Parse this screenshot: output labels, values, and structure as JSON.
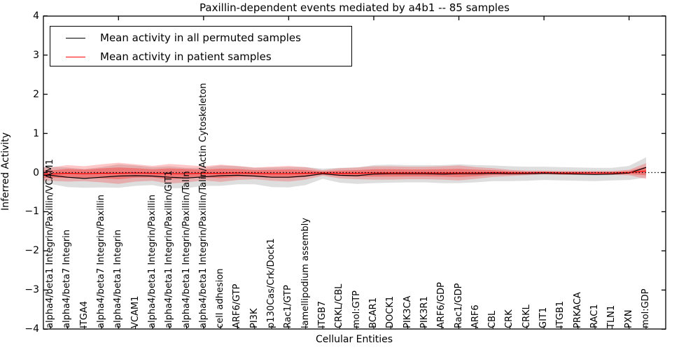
{
  "title": "Paxillin-dependent events mediated by a4b1 -- 85 samples",
  "colors": {
    "permuted_line": "#000000",
    "patient_line": "#ff0000",
    "permuted_band": "rgba(0,0,0,0.13)",
    "patient_band": "rgba(255,0,0,0.22)",
    "patient_band_inner": "rgba(255,0,0,0.30)",
    "axis": "#000000"
  },
  "chart_data": {
    "type": "line",
    "title": "Paxillin-dependent events mediated by a4b1 -- 85 samples",
    "xlabel": "Cellular Entities",
    "ylabel": "Inferred Activity",
    "ylim": [
      -4,
      4
    ],
    "yticks": [
      "4",
      "3",
      "2",
      "1",
      "0",
      "−1",
      "−2",
      "−3",
      "−4"
    ],
    "ytick_values": [
      4,
      3,
      2,
      1,
      0,
      -1,
      -2,
      -3,
      -4
    ],
    "grid": false,
    "legend_position": "upper left",
    "zero_reference_line": 0,
    "legend": [
      {
        "label": "Mean activity in all permuted samples",
        "color": "#000000"
      },
      {
        "label": "Mean activity in patient samples",
        "color": "#ff0000"
      }
    ],
    "categories": [
      "alpha4/beta1 Integrin/Paxillin/VCAM1",
      "alpha4/beta7 Integrin",
      "ITGA4",
      "alpha4/beta7 Integrin/Paxillin",
      "alpha4/beta1 Integrin",
      "VCAM1",
      "alpha4/beta1 Integrin/Paxillin",
      "alpha4/beta1 Integrin/Paxillin/GIT1",
      "alpha4/beta1 Integrin/Paxillin/Talin",
      "alpha4/beta1 Integrin/Paxillin/Talin/Actin Cytoskeleton",
      "cell adhesion",
      "ARF6/GTP",
      "PI3K",
      "p130Cas/Crk/Dock1",
      "Rac1/GTP",
      "lamellipodium assembly",
      "ITGB7",
      "CRKL/CBL",
      "mol:GTP",
      "BCAR1",
      "DOCK1",
      "PIK3CA",
      "PIK3R1",
      "ARF6/GDP",
      "Rac1/GDP",
      "ARF6",
      "CBL",
      "CRK",
      "CRKL",
      "GIT1",
      "ITGB1",
      "PRKACA",
      "RAC1",
      "TLN1",
      "PXN",
      "mol:GDP"
    ],
    "series": [
      {
        "name": "Mean activity in all permuted samples",
        "color": "#000000",
        "values": [
          -0.07,
          -0.12,
          -0.15,
          -0.12,
          -0.09,
          -0.08,
          -0.09,
          -0.12,
          -0.14,
          -0.11,
          -0.08,
          -0.07,
          -0.09,
          -0.12,
          -0.12,
          -0.09,
          -0.03,
          -0.07,
          -0.08,
          -0.04,
          -0.03,
          -0.03,
          -0.03,
          -0.04,
          -0.03,
          -0.03,
          -0.02,
          -0.03,
          -0.03,
          -0.02,
          -0.03,
          -0.04,
          -0.05,
          -0.04,
          -0.01,
          0.13
        ]
      },
      {
        "name": "Mean activity in patient samples",
        "color": "#ff0000",
        "values": [
          -0.04,
          -0.02,
          -0.03,
          -0.02,
          -0.02,
          -0.01,
          -0.02,
          -0.03,
          -0.03,
          -0.02,
          -0.02,
          -0.01,
          -0.02,
          -0.03,
          -0.03,
          -0.02,
          -0.01,
          -0.02,
          -0.02,
          -0.01,
          -0.01,
          -0.01,
          -0.01,
          -0.01,
          -0.01,
          -0.01,
          0.0,
          -0.01,
          -0.01,
          0.0,
          -0.01,
          -0.01,
          -0.01,
          -0.01,
          0.0,
          0.04
        ]
      }
    ],
    "bands": [
      {
        "name": "permuted-samples-std-band",
        "series": 0,
        "color": "rgba(0,0,0,0.13)",
        "halfwidths": [
          0.22,
          0.25,
          0.24,
          0.26,
          0.3,
          0.26,
          0.23,
          0.28,
          0.26,
          0.23,
          0.26,
          0.23,
          0.21,
          0.25,
          0.26,
          0.23,
          0.13,
          0.19,
          0.21,
          0.23,
          0.23,
          0.22,
          0.22,
          0.23,
          0.24,
          0.22,
          0.2,
          0.19,
          0.18,
          0.17,
          0.17,
          0.17,
          0.17,
          0.16,
          0.18,
          0.26
        ]
      },
      {
        "name": "patient-samples-std-band",
        "series": 1,
        "color": "rgba(255,0,0,0.22)",
        "inner_color": "rgba(255,0,0,0.30)",
        "inner_scale": 0.55,
        "halfwidths": [
          0.17,
          0.21,
          0.19,
          0.23,
          0.27,
          0.22,
          0.19,
          0.25,
          0.22,
          0.18,
          0.22,
          0.18,
          0.15,
          0.18,
          0.2,
          0.16,
          0.07,
          0.13,
          0.15,
          0.17,
          0.17,
          0.16,
          0.16,
          0.17,
          0.19,
          0.15,
          0.11,
          0.08,
          0.06,
          0.05,
          0.05,
          0.05,
          0.05,
          0.05,
          0.07,
          0.2
        ]
      }
    ]
  }
}
